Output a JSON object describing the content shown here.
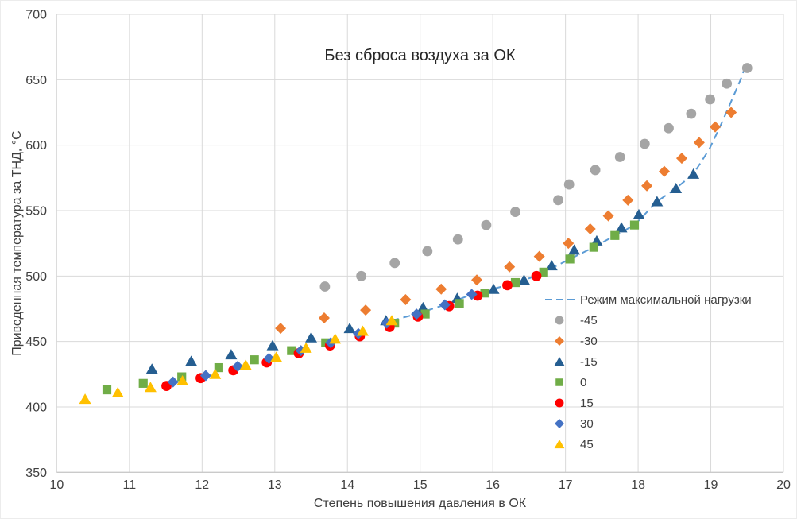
{
  "chart_data": {
    "type": "scatter",
    "title": "Без сброса воздуха за ОК",
    "xlabel": "Степень повышения давления в ОК",
    "ylabel": "Приведенная температура за ТНД, °C",
    "xlim": [
      10,
      20
    ],
    "ylim": [
      350,
      700
    ],
    "x_ticks": [
      10,
      11,
      12,
      13,
      14,
      15,
      16,
      17,
      18,
      19,
      20
    ],
    "y_ticks": [
      350,
      400,
      450,
      500,
      550,
      600,
      650,
      700
    ],
    "grid": true,
    "legend_position": "inside-middle-right",
    "series": [
      {
        "name": "Режим максимальной нагрузки",
        "type": "line",
        "style": "dashed",
        "color": "#5B9BD5",
        "points": [
          [
            14.61,
            466
          ],
          [
            14.95,
            471
          ],
          [
            15.34,
            478
          ],
          [
            15.71,
            486
          ],
          [
            16.2,
            493
          ],
          [
            16.6,
            500
          ],
          [
            17.06,
            513
          ],
          [
            17.39,
            522
          ],
          [
            17.68,
            531
          ],
          [
            17.95,
            539
          ],
          [
            18.26,
            557
          ],
          [
            18.52,
            567
          ],
          [
            18.76,
            578
          ],
          [
            18.98,
            597
          ],
          [
            19.15,
            617
          ],
          [
            19.3,
            636
          ],
          [
            19.41,
            650
          ],
          [
            19.46,
            658
          ]
        ]
      },
      {
        "name": "-45",
        "type": "scatter",
        "marker": "circle",
        "color": "#A5A5A5",
        "points": [
          [
            13.69,
            492
          ],
          [
            14.19,
            500
          ],
          [
            14.65,
            510
          ],
          [
            15.1,
            519
          ],
          [
            15.52,
            528
          ],
          [
            15.91,
            539
          ],
          [
            16.31,
            549
          ],
          [
            16.9,
            558
          ],
          [
            17.05,
            570
          ],
          [
            17.41,
            581
          ],
          [
            17.75,
            591
          ],
          [
            18.09,
            601
          ],
          [
            18.42,
            613
          ],
          [
            18.73,
            624
          ],
          [
            18.99,
            635
          ],
          [
            19.22,
            647
          ],
          [
            19.5,
            659
          ]
        ]
      },
      {
        "name": "-30",
        "type": "scatter",
        "marker": "diamond",
        "color": "#ED7D31",
        "points": [
          [
            13.08,
            460
          ],
          [
            13.68,
            468
          ],
          [
            14.25,
            474
          ],
          [
            14.8,
            482
          ],
          [
            15.29,
            490
          ],
          [
            15.78,
            497
          ],
          [
            16.23,
            507
          ],
          [
            16.64,
            515
          ],
          [
            17.04,
            525
          ],
          [
            17.34,
            536
          ],
          [
            17.59,
            546
          ],
          [
            17.86,
            558
          ],
          [
            18.12,
            569
          ],
          [
            18.36,
            580
          ],
          [
            18.6,
            590
          ],
          [
            18.84,
            602
          ],
          [
            19.06,
            614
          ],
          [
            19.28,
            625
          ]
        ]
      },
      {
        "name": "-15",
        "type": "scatter",
        "marker": "triangle",
        "color": "#255E91",
        "points": [
          [
            11.31,
            429
          ],
          [
            11.85,
            435
          ],
          [
            12.4,
            440
          ],
          [
            12.97,
            447
          ],
          [
            13.5,
            453
          ],
          [
            14.03,
            460
          ],
          [
            14.53,
            466
          ],
          [
            15.04,
            476
          ],
          [
            15.51,
            483
          ],
          [
            16.01,
            490
          ],
          [
            16.43,
            497
          ],
          [
            16.81,
            508
          ],
          [
            17.12,
            520
          ],
          [
            17.43,
            527
          ],
          [
            17.77,
            537
          ],
          [
            18.01,
            547
          ],
          [
            18.26,
            557
          ],
          [
            18.52,
            567
          ],
          [
            18.76,
            578
          ]
        ]
      },
      {
        "name": "0",
        "type": "scatter",
        "marker": "square",
        "color": "#70AD47",
        "points": [
          [
            10.69,
            413
          ],
          [
            11.19,
            418
          ],
          [
            11.72,
            423
          ],
          [
            12.23,
            430
          ],
          [
            12.72,
            436
          ],
          [
            13.23,
            443
          ],
          [
            13.7,
            449
          ],
          [
            14.65,
            464
          ],
          [
            15.07,
            471
          ],
          [
            15.54,
            479
          ],
          [
            15.89,
            487
          ],
          [
            16.31,
            495
          ],
          [
            16.7,
            503
          ],
          [
            17.06,
            513
          ],
          [
            17.39,
            522
          ],
          [
            17.68,
            531
          ],
          [
            17.95,
            539
          ]
        ]
      },
      {
        "name": "15",
        "type": "scatter",
        "marker": "circle",
        "color": "#FF0000",
        "points": [
          [
            11.51,
            416
          ],
          [
            11.98,
            422
          ],
          [
            12.43,
            428
          ],
          [
            12.89,
            434
          ],
          [
            13.33,
            441
          ],
          [
            13.76,
            447
          ],
          [
            14.17,
            454
          ],
          [
            14.58,
            461
          ],
          [
            14.97,
            469
          ],
          [
            15.4,
            477
          ],
          [
            15.79,
            485
          ],
          [
            16.2,
            493
          ],
          [
            16.6,
            500
          ]
        ]
      },
      {
        "name": "30",
        "type": "scatter",
        "marker": "diamond",
        "color": "#4472C4",
        "points": [
          [
            11.6,
            419
          ],
          [
            12.05,
            424
          ],
          [
            12.49,
            431
          ],
          [
            12.92,
            437
          ],
          [
            13.36,
            443
          ],
          [
            13.77,
            449
          ],
          [
            14.15,
            456
          ],
          [
            14.54,
            464
          ],
          [
            14.95,
            471
          ],
          [
            15.34,
            478
          ],
          [
            15.71,
            486
          ]
        ]
      },
      {
        "name": "45",
        "type": "scatter",
        "marker": "triangle",
        "color": "#FFC000",
        "points": [
          [
            10.39,
            406
          ],
          [
            10.84,
            411
          ],
          [
            11.29,
            415
          ],
          [
            11.73,
            420
          ],
          [
            12.18,
            425
          ],
          [
            12.6,
            432
          ],
          [
            13.02,
            438
          ],
          [
            13.43,
            445
          ],
          [
            13.83,
            452
          ],
          [
            14.21,
            458
          ],
          [
            14.61,
            466
          ]
        ]
      }
    ]
  },
  "colors": {
    "grid": "#D9D9D9",
    "axis_line": "#BFBFBF",
    "tick_text": "#404040",
    "title_text": "#262626"
  }
}
